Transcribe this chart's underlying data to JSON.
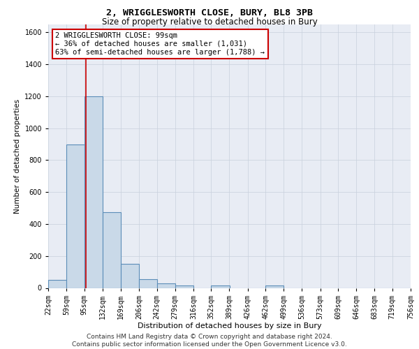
{
  "title_line1": "2, WRIGGLESWORTH CLOSE, BURY, BL8 3PB",
  "title_line2": "Size of property relative to detached houses in Bury",
  "xlabel": "Distribution of detached houses by size in Bury",
  "ylabel": "Number of detached properties",
  "bin_edges": [
    22,
    59,
    95,
    132,
    169,
    206,
    242,
    279,
    316,
    352,
    389,
    426,
    462,
    499,
    536,
    573,
    609,
    646,
    683,
    719,
    756
  ],
  "bar_heights": [
    50,
    900,
    1200,
    475,
    150,
    55,
    30,
    15,
    0,
    15,
    0,
    0,
    15,
    0,
    0,
    0,
    0,
    0,
    0,
    0
  ],
  "bar_color": "#c9d9e8",
  "bar_edgecolor": "#5b8db8",
  "bar_linewidth": 0.8,
  "property_size": 99,
  "vline_color": "#cc0000",
  "vline_linewidth": 1.2,
  "annotation_line1": "2 WRIGGLESWORTH CLOSE: 99sqm",
  "annotation_line2": "← 36% of detached houses are smaller (1,031)",
  "annotation_line3": "63% of semi-detached houses are larger (1,788) →",
  "annotation_box_color": "#cc0000",
  "ylim": [
    0,
    1650
  ],
  "yticks": [
    0,
    200,
    400,
    600,
    800,
    1000,
    1200,
    1400,
    1600
  ],
  "grid_color": "#c8d0dc",
  "background_color": "#e8ecf4",
  "footer_line1": "Contains HM Land Registry data © Crown copyright and database right 2024.",
  "footer_line2": "Contains public sector information licensed under the Open Government Licence v3.0.",
  "title_fontsize": 9.5,
  "subtitle_fontsize": 8.5,
  "axis_label_fontsize": 8,
  "tick_fontsize": 7,
  "annotation_fontsize": 7.5,
  "footer_fontsize": 6.5,
  "ylabel_fontsize": 7.5
}
